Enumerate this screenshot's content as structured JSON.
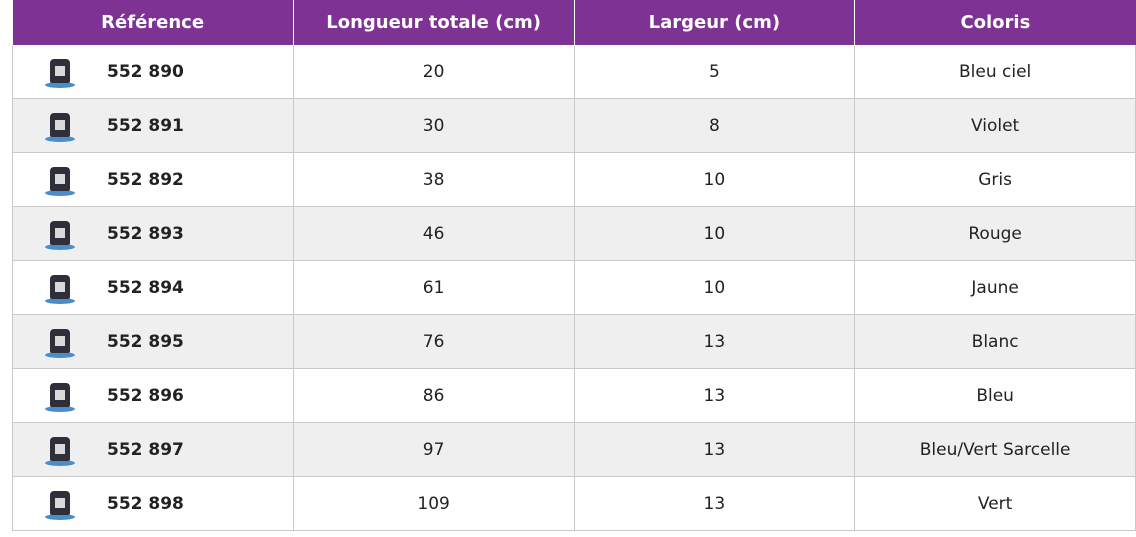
{
  "table": {
    "header": [
      "Référence",
      "Longueur totale (cm)",
      "Largeur (cm)",
      "Coloris"
    ],
    "rows": [
      [
        "552 890",
        20,
        5,
        "Bleu ciel"
      ],
      [
        "552 891",
        30,
        8,
        "Violet"
      ],
      [
        "552 892",
        38,
        10,
        "Gris"
      ],
      [
        "552 893",
        46,
        10,
        "Rouge"
      ],
      [
        "552 894",
        61,
        10,
        "Jaune"
      ],
      [
        "552 895",
        76,
        13,
        "Blanc"
      ],
      [
        "552 896",
        86,
        13,
        "Bleu"
      ],
      [
        "552 897",
        97,
        13,
        "Bleu/Vert Sarcelle"
      ],
      [
        "552 898",
        109,
        13,
        "Vert"
      ]
    ]
  }
}
